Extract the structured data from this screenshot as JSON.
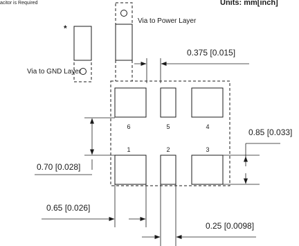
{
  "header": {
    "left_note": "acitor is Required",
    "units": "Units: mm[inch]"
  },
  "vias": {
    "power": "Via to Power Layer",
    "gnd": "Via to GND Layer"
  },
  "asterisk": "*",
  "pads": {
    "top": [
      "6",
      "5",
      "4"
    ],
    "bottom": [
      "1",
      "2",
      "3"
    ]
  },
  "dims": {
    "d0375": "0.375 [0.015]",
    "d085": "0.85 [0.033]",
    "d070": "0.70 [0.028]",
    "d065": "0.65 [0.026]",
    "d025": "0.25 [0.0098]"
  }
}
